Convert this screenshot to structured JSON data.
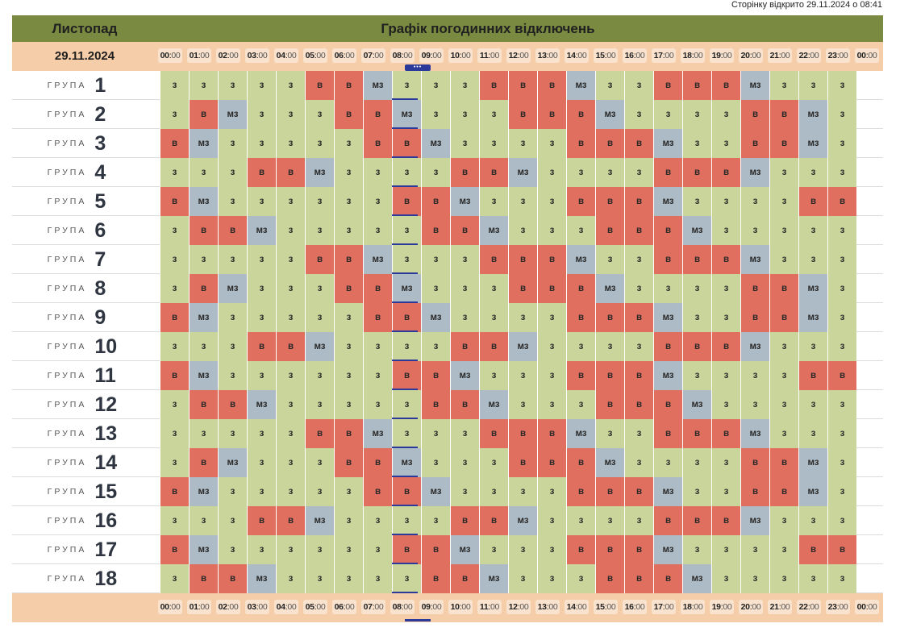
{
  "opened_text": "Сторінку відкрито 29.11.2024 о 08:41",
  "header": {
    "month": "Листопад",
    "title": "Графік погодинних відключень"
  },
  "date": "29.11.2024",
  "group_word": "ГРУПА",
  "current_hour_index": 8,
  "time_labels": [
    {
      "h": "00",
      "m": "00"
    },
    {
      "h": "01",
      "m": "00"
    },
    {
      "h": "02",
      "m": "00"
    },
    {
      "h": "03",
      "m": "00"
    },
    {
      "h": "04",
      "m": "00"
    },
    {
      "h": "05",
      "m": "00"
    },
    {
      "h": "06",
      "m": "00"
    },
    {
      "h": "07",
      "m": "00"
    },
    {
      "h": "08",
      "m": "00"
    },
    {
      "h": "09",
      "m": "00"
    },
    {
      "h": "10",
      "m": "00"
    },
    {
      "h": "11",
      "m": "00"
    },
    {
      "h": "12",
      "m": "00"
    },
    {
      "h": "13",
      "m": "00"
    },
    {
      "h": "14",
      "m": "00"
    },
    {
      "h": "15",
      "m": "00"
    },
    {
      "h": "16",
      "m": "00"
    },
    {
      "h": "17",
      "m": "00"
    },
    {
      "h": "18",
      "m": "00"
    },
    {
      "h": "19",
      "m": "00"
    },
    {
      "h": "20",
      "m": "00"
    },
    {
      "h": "21",
      "m": "00"
    },
    {
      "h": "22",
      "m": "00"
    },
    {
      "h": "23",
      "m": "00"
    },
    {
      "h": "00",
      "m": "00"
    }
  ],
  "status_colors": {
    "з": "#c9d59b",
    "в": "#e06f5f",
    "мз": "#acbbc6"
  },
  "groups": [
    {
      "num": "1",
      "slots": [
        "з",
        "з",
        "з",
        "з",
        "з",
        "в",
        "в",
        "мз",
        "з",
        "з",
        "з",
        "в",
        "в",
        "в",
        "мз",
        "з",
        "з",
        "в",
        "в",
        "в",
        "мз",
        "з",
        "з",
        "з"
      ]
    },
    {
      "num": "2",
      "slots": [
        "з",
        "в",
        "мз",
        "з",
        "з",
        "з",
        "в",
        "в",
        "мз",
        "з",
        "з",
        "з",
        "в",
        "в",
        "в",
        "мз",
        "з",
        "з",
        "з",
        "з",
        "в",
        "в",
        "мз",
        "з"
      ]
    },
    {
      "num": "3",
      "slots": [
        "в",
        "мз",
        "з",
        "з",
        "з",
        "з",
        "з",
        "в",
        "в",
        "мз",
        "з",
        "з",
        "з",
        "з",
        "в",
        "в",
        "в",
        "мз",
        "з",
        "з",
        "в",
        "в",
        "мз",
        "з"
      ]
    },
    {
      "num": "4",
      "slots": [
        "з",
        "з",
        "з",
        "в",
        "в",
        "мз",
        "з",
        "з",
        "з",
        "з",
        "в",
        "в",
        "мз",
        "з",
        "з",
        "з",
        "з",
        "в",
        "в",
        "в",
        "мз",
        "з",
        "з",
        "з"
      ]
    },
    {
      "num": "5",
      "slots": [
        "в",
        "мз",
        "з",
        "з",
        "з",
        "з",
        "з",
        "з",
        "в",
        "в",
        "мз",
        "з",
        "з",
        "з",
        "в",
        "в",
        "в",
        "мз",
        "з",
        "з",
        "з",
        "з",
        "в",
        "в"
      ]
    },
    {
      "num": "6",
      "slots": [
        "з",
        "в",
        "в",
        "мз",
        "з",
        "з",
        "з",
        "з",
        "з",
        "в",
        "в",
        "мз",
        "з",
        "з",
        "з",
        "в",
        "в",
        "в",
        "мз",
        "з",
        "з",
        "з",
        "з",
        "з"
      ]
    },
    {
      "num": "7",
      "slots": [
        "з",
        "з",
        "з",
        "з",
        "з",
        "в",
        "в",
        "мз",
        "з",
        "з",
        "з",
        "в",
        "в",
        "в",
        "мз",
        "з",
        "з",
        "в",
        "в",
        "в",
        "мз",
        "з",
        "з",
        "з"
      ]
    },
    {
      "num": "8",
      "slots": [
        "з",
        "в",
        "мз",
        "з",
        "з",
        "з",
        "в",
        "в",
        "мз",
        "з",
        "з",
        "з",
        "в",
        "в",
        "в",
        "мз",
        "з",
        "з",
        "з",
        "з",
        "в",
        "в",
        "мз",
        "з"
      ]
    },
    {
      "num": "9",
      "slots": [
        "в",
        "мз",
        "з",
        "з",
        "з",
        "з",
        "з",
        "в",
        "в",
        "мз",
        "з",
        "з",
        "з",
        "з",
        "в",
        "в",
        "в",
        "мз",
        "з",
        "з",
        "в",
        "в",
        "мз",
        "з"
      ]
    },
    {
      "num": "10",
      "slots": [
        "з",
        "з",
        "з",
        "в",
        "в",
        "мз",
        "з",
        "з",
        "з",
        "з",
        "в",
        "в",
        "мз",
        "з",
        "з",
        "з",
        "з",
        "в",
        "в",
        "в",
        "мз",
        "з",
        "з",
        "з"
      ]
    },
    {
      "num": "11",
      "slots": [
        "в",
        "мз",
        "з",
        "з",
        "з",
        "з",
        "з",
        "з",
        "в",
        "в",
        "мз",
        "з",
        "з",
        "з",
        "в",
        "в",
        "в",
        "мз",
        "з",
        "з",
        "з",
        "з",
        "в",
        "в"
      ]
    },
    {
      "num": "12",
      "slots": [
        "з",
        "в",
        "в",
        "мз",
        "з",
        "з",
        "з",
        "з",
        "з",
        "в",
        "в",
        "мз",
        "з",
        "з",
        "з",
        "в",
        "в",
        "в",
        "мз",
        "з",
        "з",
        "з",
        "з",
        "з"
      ]
    },
    {
      "num": "13",
      "slots": [
        "з",
        "з",
        "з",
        "з",
        "з",
        "в",
        "в",
        "мз",
        "з",
        "з",
        "з",
        "в",
        "в",
        "в",
        "мз",
        "з",
        "з",
        "в",
        "в",
        "в",
        "мз",
        "з",
        "з",
        "з"
      ]
    },
    {
      "num": "14",
      "slots": [
        "з",
        "в",
        "мз",
        "з",
        "з",
        "з",
        "в",
        "в",
        "мз",
        "з",
        "з",
        "з",
        "в",
        "в",
        "в",
        "мз",
        "з",
        "з",
        "з",
        "з",
        "в",
        "в",
        "мз",
        "з"
      ]
    },
    {
      "num": "15",
      "slots": [
        "в",
        "мз",
        "з",
        "з",
        "з",
        "з",
        "з",
        "в",
        "в",
        "мз",
        "з",
        "з",
        "з",
        "з",
        "в",
        "в",
        "в",
        "мз",
        "з",
        "з",
        "в",
        "в",
        "мз",
        "з"
      ]
    },
    {
      "num": "16",
      "slots": [
        "з",
        "з",
        "з",
        "в",
        "в",
        "мз",
        "з",
        "з",
        "з",
        "з",
        "в",
        "в",
        "мз",
        "з",
        "з",
        "з",
        "з",
        "в",
        "в",
        "в",
        "мз",
        "з",
        "з",
        "з"
      ]
    },
    {
      "num": "17",
      "slots": [
        "в",
        "мз",
        "з",
        "з",
        "з",
        "з",
        "з",
        "з",
        "в",
        "в",
        "мз",
        "з",
        "з",
        "з",
        "в",
        "в",
        "в",
        "мз",
        "з",
        "з",
        "з",
        "з",
        "в",
        "в"
      ]
    },
    {
      "num": "18",
      "slots": [
        "з",
        "в",
        "в",
        "мз",
        "з",
        "з",
        "з",
        "з",
        "з",
        "в",
        "в",
        "мз",
        "з",
        "з",
        "з",
        "в",
        "в",
        "в",
        "мз",
        "з",
        "з",
        "з",
        "з",
        "з"
      ]
    }
  ]
}
